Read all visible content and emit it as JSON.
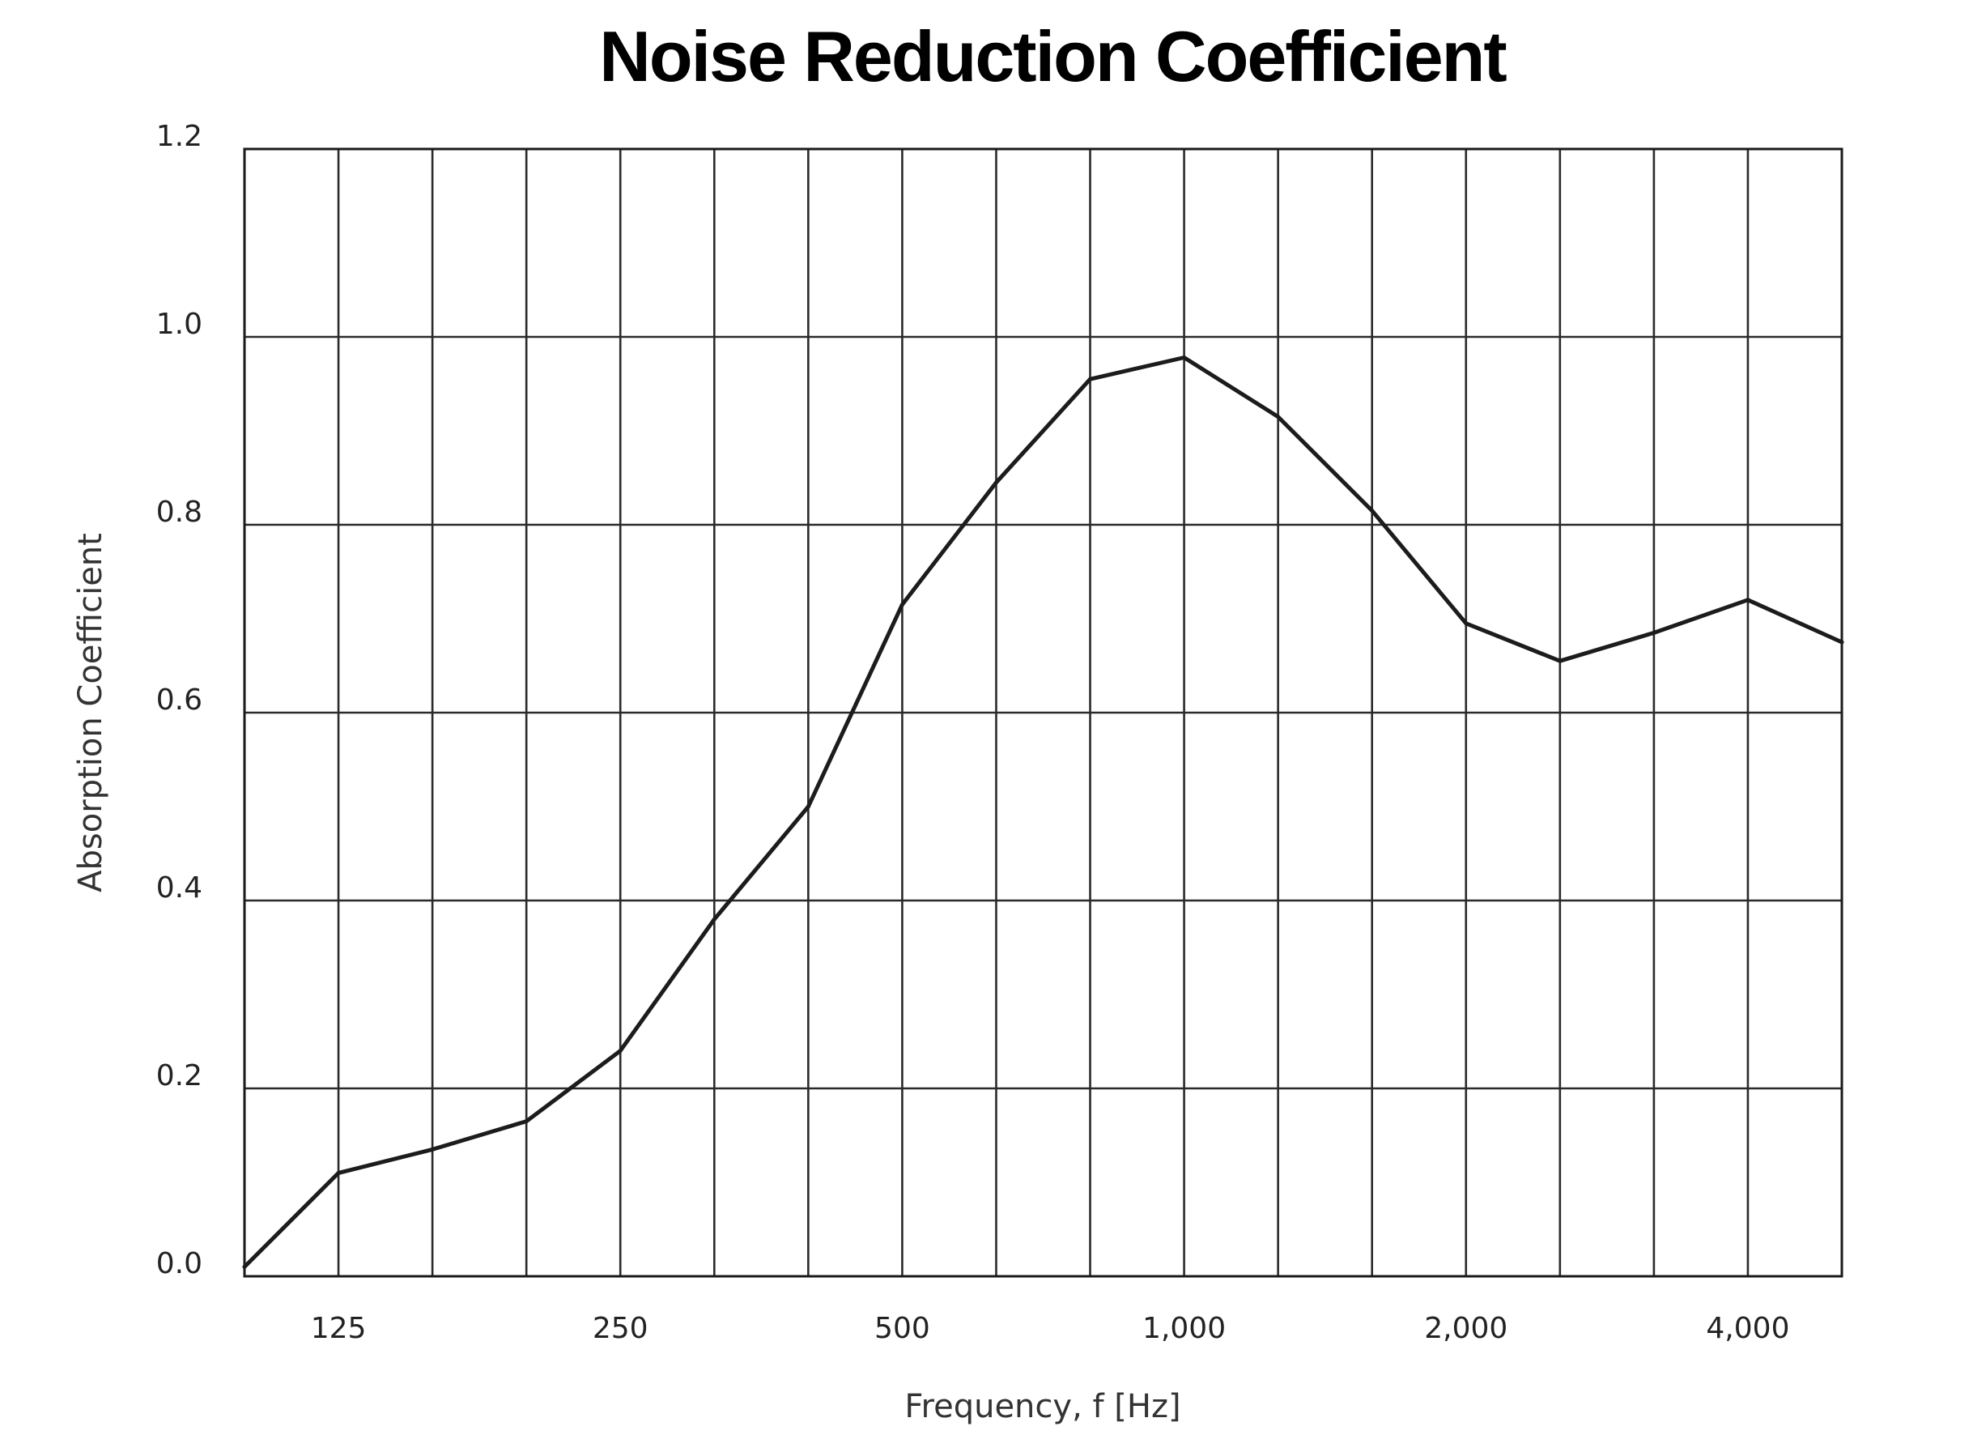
{
  "chart_data": {
    "type": "line",
    "title": "Noise Reduction Coefficient",
    "xlabel": "Frequency, f [Hz]",
    "ylabel": "Absorption Coefficient",
    "ylim": [
      0,
      1.2
    ],
    "y_ticks": [
      "0.0",
      "0.2",
      "0.4",
      "0.6",
      "0.8",
      "1.0",
      "1.2"
    ],
    "x_tick_labels": [
      "125",
      "250",
      "500",
      "1,000",
      "2,000",
      "4,000"
    ],
    "x_scale": "log (1/3-octave bands)",
    "grid": true,
    "x": [
      100,
      125,
      160,
      200,
      250,
      315,
      400,
      500,
      630,
      800,
      1000,
      1250,
      1600,
      2000,
      2500,
      3150,
      4000,
      5000
    ],
    "series": [
      {
        "values": [
          0.01,
          0.11,
          0.135,
          0.165,
          0.24,
          0.38,
          0.5,
          0.715,
          0.845,
          0.955,
          0.978,
          0.915,
          0.815,
          0.695,
          0.655,
          0.685,
          0.72,
          0.675
        ]
      }
    ]
  }
}
